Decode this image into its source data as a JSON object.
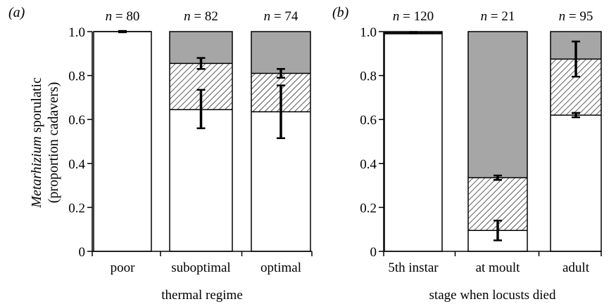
{
  "figure": {
    "ylabel_italic": "Metarhizium",
    "ylabel_rest": " sporulatic",
    "ylabel_line2": "(proportion cadavers)"
  },
  "colors": {
    "bottom": "#ffffff",
    "middle_hatch": "#000000",
    "top": "#a6a6a6",
    "axis": "#000000"
  },
  "chart_data": [
    {
      "type": "bar",
      "stacked": true,
      "panel_label": "(a)",
      "xlabel": "thermal regime",
      "ylim": [
        0,
        1.0
      ],
      "yticks": [
        "0",
        "0.2",
        "0.4",
        "0.6",
        "0.8",
        "1.0"
      ],
      "categories": [
        "poor",
        "suboptimal",
        "optimal"
      ],
      "n_labels": [
        "n = 80",
        "n = 82",
        "n = 74"
      ],
      "stack_tops": [
        {
          "bottom": 1.0,
          "middle": 1.0,
          "top": 1.0
        },
        {
          "bottom": 0.645,
          "middle": 0.855,
          "top": 1.0
        },
        {
          "bottom": 0.635,
          "middle": 0.81,
          "top": 1.0
        }
      ],
      "error_bars": [
        [
          {
            "value": 1.0,
            "low": 0.997,
            "high": 1.003
          }
        ],
        [
          {
            "value": 0.645,
            "low": 0.56,
            "high": 0.735
          },
          {
            "value": 0.855,
            "low": 0.83,
            "high": 0.88
          }
        ],
        [
          {
            "value": 0.635,
            "low": 0.515,
            "high": 0.755
          },
          {
            "value": 0.81,
            "low": 0.79,
            "high": 0.83
          }
        ]
      ]
    },
    {
      "type": "bar",
      "stacked": true,
      "panel_label": "(b)",
      "xlabel": "stage when locusts died",
      "ylim": [
        0,
        1.0
      ],
      "yticks": [
        "0",
        "0.2",
        "0.4",
        "0.6",
        "0.8",
        "1.0"
      ],
      "categories": [
        "5th instar",
        "at moult",
        "adult"
      ],
      "n_labels": [
        "n = 120",
        "n = 21",
        "n = 95"
      ],
      "stack_tops": [
        {
          "bottom": 0.99,
          "middle": 0.995,
          "top": 1.0
        },
        {
          "bottom": 0.095,
          "middle": 0.335,
          "top": 1.0
        },
        {
          "bottom": 0.62,
          "middle": 0.875,
          "top": 1.0
        }
      ],
      "error_bars": [
        [
          {
            "value": 0.995,
            "low": 0.992,
            "high": 0.998
          }
        ],
        [
          {
            "value": 0.095,
            "low": 0.05,
            "high": 0.14
          },
          {
            "value": 0.335,
            "low": 0.325,
            "high": 0.345
          }
        ],
        [
          {
            "value": 0.62,
            "low": 0.61,
            "high": 0.63
          },
          {
            "value": 0.875,
            "low": 0.795,
            "high": 0.955
          }
        ]
      ]
    }
  ]
}
